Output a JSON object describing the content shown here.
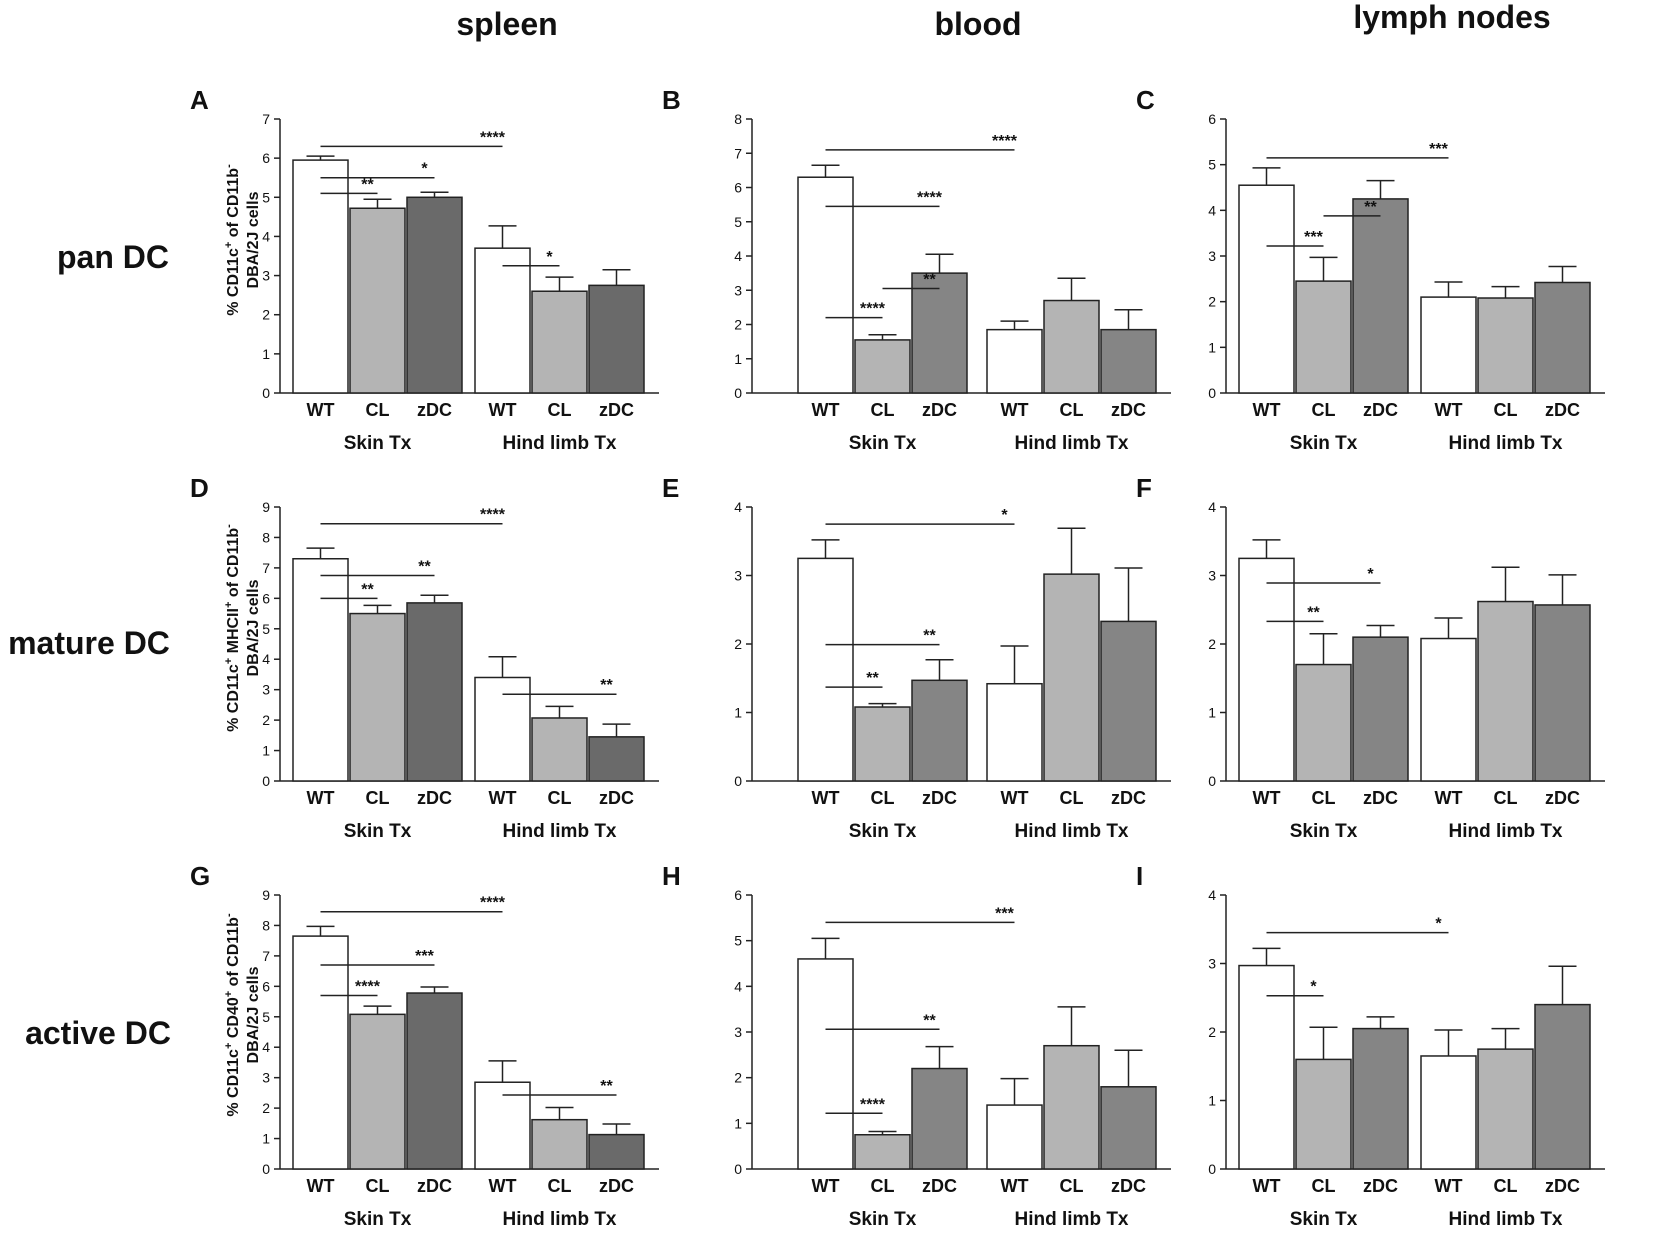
{
  "column_titles": [
    "spleen",
    "blood",
    "lymph nodes"
  ],
  "row_titles": [
    "pan DC",
    "mature DC",
    "active DC"
  ],
  "colors": {
    "WT": "#ffffff",
    "CL": "#b4b4b4",
    "zDC_spleen": "#6a6a6a",
    "zDC_other": "#858585",
    "stroke": "#222222"
  },
  "y_axis_labels": [
    {
      "pre": "% CD11c",
      "sup1": "+",
      "mid": " of CD11b",
      "sup2": "-",
      "line2": "DBA/2J cells"
    },
    {
      "pre": "% CD11c",
      "sup1": "+",
      "mid": " MHCII",
      "sup1b": "+",
      "mid2": " of CD11b",
      "sup2": "-",
      "line2": "DBA/2J cells"
    },
    {
      "pre": "% CD11c",
      "sup1": "+",
      "mid": " CD40",
      "sup1b": "+",
      "mid2": " of CD11b",
      "sup2": "-",
      "line2": "DBA/2J cells"
    }
  ],
  "chart_data": [
    {
      "panel": "A",
      "type": "bar",
      "groups": [
        "Skin Tx",
        "Hind limb Tx"
      ],
      "categories": [
        "WT",
        "CL",
        "zDC"
      ],
      "ylim": [
        0,
        7
      ],
      "yticks": [
        0,
        1,
        2,
        3,
        4,
        5,
        6,
        7
      ],
      "values": [
        [
          5.95,
          4.72,
          5.0
        ],
        [
          3.7,
          2.6,
          2.75
        ]
      ],
      "errors": [
        [
          0.1,
          0.23,
          0.13
        ],
        [
          0.57,
          0.36,
          0.4
        ]
      ],
      "sig": [
        {
          "from": [
            0,
            0
          ],
          "to": [
            1,
            0
          ],
          "y": 6.3,
          "label": "****"
        },
        {
          "from": [
            0,
            0
          ],
          "to": [
            0,
            2
          ],
          "y": 5.5,
          "label": "*"
        },
        {
          "from": [
            0,
            0
          ],
          "to": [
            0,
            1
          ],
          "y": 5.1,
          "label": "**"
        },
        {
          "from": [
            1,
            0
          ],
          "to": [
            1,
            1
          ],
          "y": 3.25,
          "label": "*"
        }
      ]
    },
    {
      "panel": "B",
      "type": "bar",
      "groups": [
        "Skin Tx",
        "Hind limb Tx"
      ],
      "categories": [
        "WT",
        "CL",
        "zDC"
      ],
      "ylim": [
        0,
        8
      ],
      "yticks": [
        0,
        1,
        2,
        3,
        4,
        5,
        6,
        7,
        8
      ],
      "values": [
        [
          6.3,
          1.55,
          3.5
        ],
        [
          1.85,
          2.7,
          1.85
        ]
      ],
      "errors": [
        [
          0.35,
          0.15,
          0.55
        ],
        [
          0.25,
          0.65,
          0.58
        ]
      ],
      "sig": [
        {
          "from": [
            0,
            0
          ],
          "to": [
            1,
            0
          ],
          "y": 7.1,
          "label": "****"
        },
        {
          "from": [
            0,
            0
          ],
          "to": [
            0,
            2
          ],
          "y": 5.45,
          "label": "****"
        },
        {
          "from": [
            0,
            1
          ],
          "to": [
            0,
            2
          ],
          "y": 3.05,
          "label": "**"
        },
        {
          "from": [
            0,
            0
          ],
          "to": [
            0,
            1
          ],
          "y": 2.2,
          "label": "****"
        }
      ]
    },
    {
      "panel": "C",
      "type": "bar",
      "groups": [
        "Skin Tx",
        "Hind limb Tx"
      ],
      "categories": [
        "WT",
        "CL",
        "zDC"
      ],
      "ylim": [
        0,
        6
      ],
      "yticks": [
        0,
        1,
        2,
        3,
        4,
        5,
        6
      ],
      "values": [
        [
          4.55,
          2.45,
          4.25
        ],
        [
          2.1,
          2.08,
          2.42
        ]
      ],
      "errors": [
        [
          0.38,
          0.52,
          0.4
        ],
        [
          0.33,
          0.25,
          0.35
        ]
      ],
      "sig": [
        {
          "from": [
            0,
            0
          ],
          "to": [
            1,
            0
          ],
          "y": 5.15,
          "label": "***"
        },
        {
          "from": [
            0,
            1
          ],
          "to": [
            0,
            2
          ],
          "y": 3.88,
          "label": "**"
        },
        {
          "from": [
            0,
            0
          ],
          "to": [
            0,
            1
          ],
          "y": 3.22,
          "label": "***"
        }
      ]
    },
    {
      "panel": "D",
      "type": "bar",
      "groups": [
        "Skin Tx",
        "Hind limb Tx"
      ],
      "categories": [
        "WT",
        "CL",
        "zDC"
      ],
      "ylim": [
        0,
        9
      ],
      "yticks": [
        0,
        1,
        2,
        3,
        4,
        5,
        6,
        7,
        8,
        9
      ],
      "values": [
        [
          7.3,
          5.5,
          5.85
        ],
        [
          3.4,
          2.07,
          1.45
        ]
      ],
      "errors": [
        [
          0.35,
          0.27,
          0.25
        ],
        [
          0.68,
          0.38,
          0.42
        ]
      ],
      "sig": [
        {
          "from": [
            0,
            0
          ],
          "to": [
            1,
            0
          ],
          "y": 8.45,
          "label": "****"
        },
        {
          "from": [
            0,
            0
          ],
          "to": [
            0,
            2
          ],
          "y": 6.75,
          "label": "**"
        },
        {
          "from": [
            0,
            0
          ],
          "to": [
            0,
            1
          ],
          "y": 6.0,
          "label": "**"
        },
        {
          "from": [
            1,
            0
          ],
          "to": [
            1,
            2
          ],
          "y": 2.85,
          "label": "**"
        }
      ]
    },
    {
      "panel": "E",
      "type": "bar",
      "groups": [
        "Skin Tx",
        "Hind limb Tx"
      ],
      "categories": [
        "WT",
        "CL",
        "zDC"
      ],
      "ylim": [
        0,
        4
      ],
      "yticks": [
        0,
        1,
        2,
        3,
        4
      ],
      "values": [
        [
          3.25,
          1.08,
          1.47
        ],
        [
          1.42,
          3.02,
          2.33
        ]
      ],
      "errors": [
        [
          0.27,
          0.05,
          0.3
        ],
        [
          0.55,
          0.67,
          0.78
        ]
      ],
      "sig": [
        {
          "from": [
            0,
            0
          ],
          "to": [
            1,
            0
          ],
          "y": 3.75,
          "label": "*"
        },
        {
          "from": [
            0,
            0
          ],
          "to": [
            0,
            2
          ],
          "y": 1.99,
          "label": "**"
        },
        {
          "from": [
            0,
            0
          ],
          "to": [
            0,
            1
          ],
          "y": 1.37,
          "label": "**"
        }
      ]
    },
    {
      "panel": "F",
      "type": "bar",
      "groups": [
        "Skin Tx",
        "Hind limb Tx"
      ],
      "categories": [
        "WT",
        "CL",
        "zDC"
      ],
      "ylim": [
        0,
        4
      ],
      "yticks": [
        0,
        1,
        2,
        3,
        4
      ],
      "values": [
        [
          3.25,
          1.7,
          2.1
        ],
        [
          2.08,
          2.62,
          2.57
        ]
      ],
      "errors": [
        [
          0.27,
          0.45,
          0.17
        ],
        [
          0.3,
          0.5,
          0.44
        ]
      ],
      "sig": [
        {
          "from": [
            0,
            0
          ],
          "to": [
            0,
            2
          ],
          "y": 2.89,
          "label": "*"
        },
        {
          "from": [
            0,
            0
          ],
          "to": [
            0,
            1
          ],
          "y": 2.33,
          "label": "**"
        }
      ]
    },
    {
      "panel": "G",
      "type": "bar",
      "groups": [
        "Skin Tx",
        "Hind limb Tx"
      ],
      "categories": [
        "WT",
        "CL",
        "zDC"
      ],
      "ylim": [
        0,
        9
      ],
      "yticks": [
        0,
        1,
        2,
        3,
        4,
        5,
        6,
        7,
        8,
        9
      ],
      "values": [
        [
          7.65,
          5.08,
          5.78
        ],
        [
          2.85,
          1.62,
          1.13
        ]
      ],
      "errors": [
        [
          0.32,
          0.27,
          0.2
        ],
        [
          0.7,
          0.4,
          0.35
        ]
      ],
      "sig": [
        {
          "from": [
            0,
            0
          ],
          "to": [
            1,
            0
          ],
          "y": 8.45,
          "label": "****"
        },
        {
          "from": [
            0,
            0
          ],
          "to": [
            0,
            2
          ],
          "y": 6.7,
          "label": "***"
        },
        {
          "from": [
            0,
            0
          ],
          "to": [
            0,
            1
          ],
          "y": 5.7,
          "label": "****"
        },
        {
          "from": [
            1,
            0
          ],
          "to": [
            1,
            2
          ],
          "y": 2.43,
          "label": "**"
        }
      ]
    },
    {
      "panel": "H",
      "type": "bar",
      "groups": [
        "Skin Tx",
        "Hind limb Tx"
      ],
      "categories": [
        "WT",
        "CL",
        "zDC"
      ],
      "ylim": [
        0,
        6
      ],
      "yticks": [
        0,
        1,
        2,
        3,
        4,
        5,
        6
      ],
      "values": [
        [
          4.6,
          0.75,
          2.2
        ],
        [
          1.4,
          2.7,
          1.8
        ]
      ],
      "errors": [
        [
          0.45,
          0.07,
          0.48
        ],
        [
          0.58,
          0.85,
          0.8
        ]
      ],
      "sig": [
        {
          "from": [
            0,
            0
          ],
          "to": [
            1,
            0
          ],
          "y": 5.4,
          "label": "***"
        },
        {
          "from": [
            0,
            0
          ],
          "to": [
            0,
            2
          ],
          "y": 3.06,
          "label": "**"
        },
        {
          "from": [
            0,
            0
          ],
          "to": [
            0,
            1
          ],
          "y": 1.22,
          "label": "****"
        }
      ]
    },
    {
      "panel": "I",
      "type": "bar",
      "groups": [
        "Skin Tx",
        "Hind limb Tx"
      ],
      "categories": [
        "WT",
        "CL",
        "zDC"
      ],
      "ylim": [
        0,
        4
      ],
      "yticks": [
        0,
        1,
        2,
        3,
        4
      ],
      "values": [
        [
          2.97,
          1.6,
          2.05
        ],
        [
          1.65,
          1.75,
          2.4
        ]
      ],
      "errors": [
        [
          0.25,
          0.47,
          0.17
        ],
        [
          0.38,
          0.3,
          0.56
        ]
      ],
      "sig": [
        {
          "from": [
            0,
            0
          ],
          "to": [
            1,
            0
          ],
          "y": 3.45,
          "label": "*"
        },
        {
          "from": [
            0,
            0
          ],
          "to": [
            0,
            1
          ],
          "y": 2.53,
          "label": "*"
        }
      ]
    }
  ]
}
